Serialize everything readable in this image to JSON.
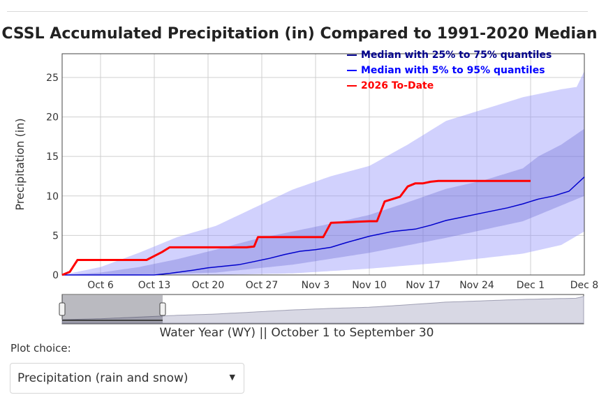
{
  "chart_data": {
    "type": "area",
    "title": "CSSL Accumulated Precipitation (in) Compared to 1991-2020 Median",
    "ylabel": "Precipitation (in)",
    "xlabel": "Water Year (WY) || October 1 to September 30",
    "xlim": [
      0,
      68
    ],
    "ylim": [
      0,
      28
    ],
    "x_ticks": [
      {
        "day": 5,
        "label": "Oct 6"
      },
      {
        "day": 12,
        "label": "Oct 13"
      },
      {
        "day": 19,
        "label": "Oct 20"
      },
      {
        "day": 26,
        "label": "Oct 27"
      },
      {
        "day": 33,
        "label": "Nov 3"
      },
      {
        "day": 40,
        "label": "Nov 10"
      },
      {
        "day": 47,
        "label": "Nov 17"
      },
      {
        "day": 54,
        "label": "Nov 24"
      },
      {
        "day": 61,
        "label": "Dec 1"
      },
      {
        "day": 68,
        "label": "Dec 8"
      }
    ],
    "y_ticks": [
      0,
      5,
      10,
      15,
      20,
      25
    ],
    "legend": [
      {
        "label": "Median with 25% to 75% quantiles",
        "color": "#00008b"
      },
      {
        "label": "Median with 5% to 95% quantiles",
        "color": "#0000ff"
      },
      {
        "label": "2026 To-Date",
        "color": "#ff0000"
      }
    ],
    "series": [
      {
        "name": "Median",
        "color": "#0000cc",
        "x": [
          0,
          5,
          10,
          12,
          14,
          17,
          19,
          21,
          23,
          25,
          27,
          29,
          31,
          33,
          35,
          37,
          40,
          43,
          46,
          48,
          50,
          52,
          54,
          56,
          58,
          60,
          62,
          64,
          66,
          68
        ],
        "values": [
          0,
          0,
          0,
          0,
          0.2,
          0.6,
          0.9,
          1.1,
          1.3,
          1.7,
          2.1,
          2.6,
          3.0,
          3.2,
          3.5,
          4.1,
          4.9,
          5.5,
          5.8,
          6.3,
          6.9,
          7.3,
          7.7,
          8.1,
          8.5,
          9.0,
          9.6,
          10.0,
          10.6,
          12.4
        ]
      },
      {
        "name": "2026 To-Date",
        "color": "#ff0000",
        "x": [
          0,
          1,
          2,
          11,
          13,
          14,
          19,
          24,
          25,
          25.5,
          32,
          33,
          34,
          35,
          40,
          41,
          42,
          43,
          44,
          45,
          46,
          47,
          48,
          49,
          50,
          56,
          59,
          61
        ],
        "values": [
          0,
          0.4,
          1.9,
          1.9,
          2.9,
          3.5,
          3.5,
          3.5,
          3.6,
          4.8,
          4.8,
          4.8,
          4.8,
          6.6,
          6.8,
          6.8,
          9.3,
          9.6,
          9.9,
          11.2,
          11.6,
          11.6,
          11.8,
          11.9,
          11.9,
          11.9,
          11.9,
          11.9
        ]
      },
      {
        "name": "25% quantile",
        "x": [
          0,
          10,
          20,
          30,
          40,
          50,
          60,
          68
        ],
        "values": [
          0,
          0.05,
          0.3,
          1.3,
          2.8,
          4.7,
          6.8,
          10.0
        ]
      },
      {
        "name": "75% quantile",
        "x": [
          0,
          5,
          10,
          15,
          20,
          25,
          30,
          35,
          40,
          45,
          50,
          55,
          60,
          62,
          65,
          68
        ],
        "values": [
          0,
          0.3,
          1.0,
          2.0,
          3.2,
          4.5,
          5.5,
          6.5,
          7.6,
          9.2,
          10.9,
          12.0,
          13.5,
          15.0,
          16.5,
          18.5
        ]
      },
      {
        "name": "5% quantile",
        "x": [
          0,
          20,
          30,
          40,
          50,
          60,
          65,
          68
        ],
        "values": [
          0,
          0,
          0.2,
          0.8,
          1.6,
          2.7,
          3.8,
          5.5
        ]
      },
      {
        "name": "95% quantile",
        "x": [
          0,
          5,
          10,
          15,
          20,
          25,
          30,
          35,
          40,
          45,
          50,
          55,
          60,
          65,
          67,
          68
        ],
        "values": [
          0,
          1.0,
          2.8,
          4.8,
          6.2,
          8.5,
          10.8,
          12.5,
          13.8,
          16.5,
          19.5,
          21.0,
          22.5,
          23.5,
          23.8,
          25.8
        ]
      }
    ],
    "range_slider": {
      "selected_start": "Oct 1",
      "selected_end": "Dec 8"
    }
  },
  "xaxis_caption": "Water Year (WY) || October 1 to September 30",
  "plot_choice": {
    "label": "Plot choice:",
    "selected": "Precipitation (rain and snow)"
  }
}
